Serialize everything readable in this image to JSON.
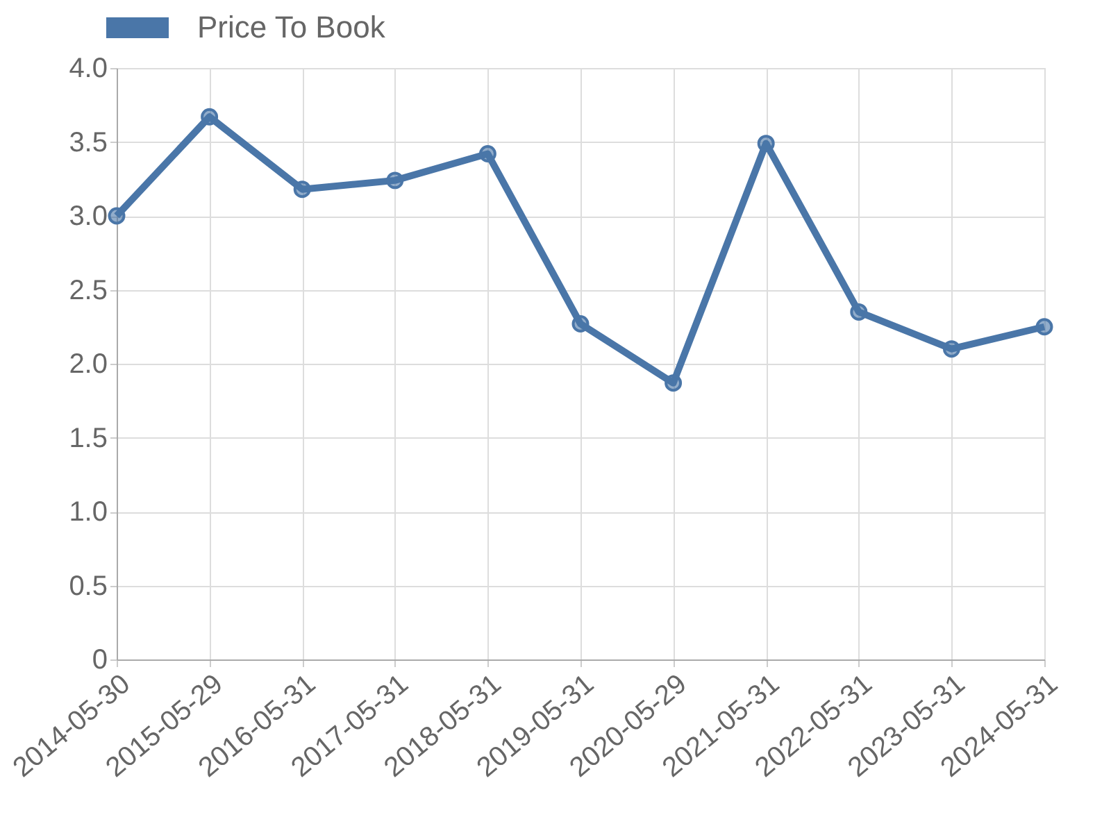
{
  "chart_data": {
    "type": "line",
    "categories": [
      "2014-05-30",
      "2015-05-29",
      "2016-05-31",
      "2017-05-31",
      "2018-05-31",
      "2019-05-31",
      "2020-05-29",
      "2021-05-31",
      "2022-05-31",
      "2023-05-31",
      "2024-05-31"
    ],
    "series": [
      {
        "name": "Price To Book",
        "color": "#4a76a8",
        "values": [
          3.0,
          3.67,
          3.18,
          3.24,
          3.42,
          2.27,
          1.87,
          3.49,
          2.35,
          2.1,
          2.25
        ]
      }
    ],
    "ylim": [
      0,
      4.0
    ],
    "yticks": [
      0,
      {
        "value": 0.5,
        "label": "0.5"
      },
      {
        "value": 1,
        "label": "1.0"
      },
      {
        "value": 1.5,
        "label": "1.5"
      },
      {
        "value": 2,
        "label": "2.0"
      },
      {
        "value": 2.5,
        "label": "2.5"
      },
      {
        "value": 3,
        "label": "3.0"
      },
      {
        "value": 3.5,
        "label": "3.5"
      },
      {
        "value": 4,
        "label": "4.0"
      }
    ],
    "grid": true,
    "legend": "top",
    "marker": "circle",
    "line_style": "solid"
  }
}
